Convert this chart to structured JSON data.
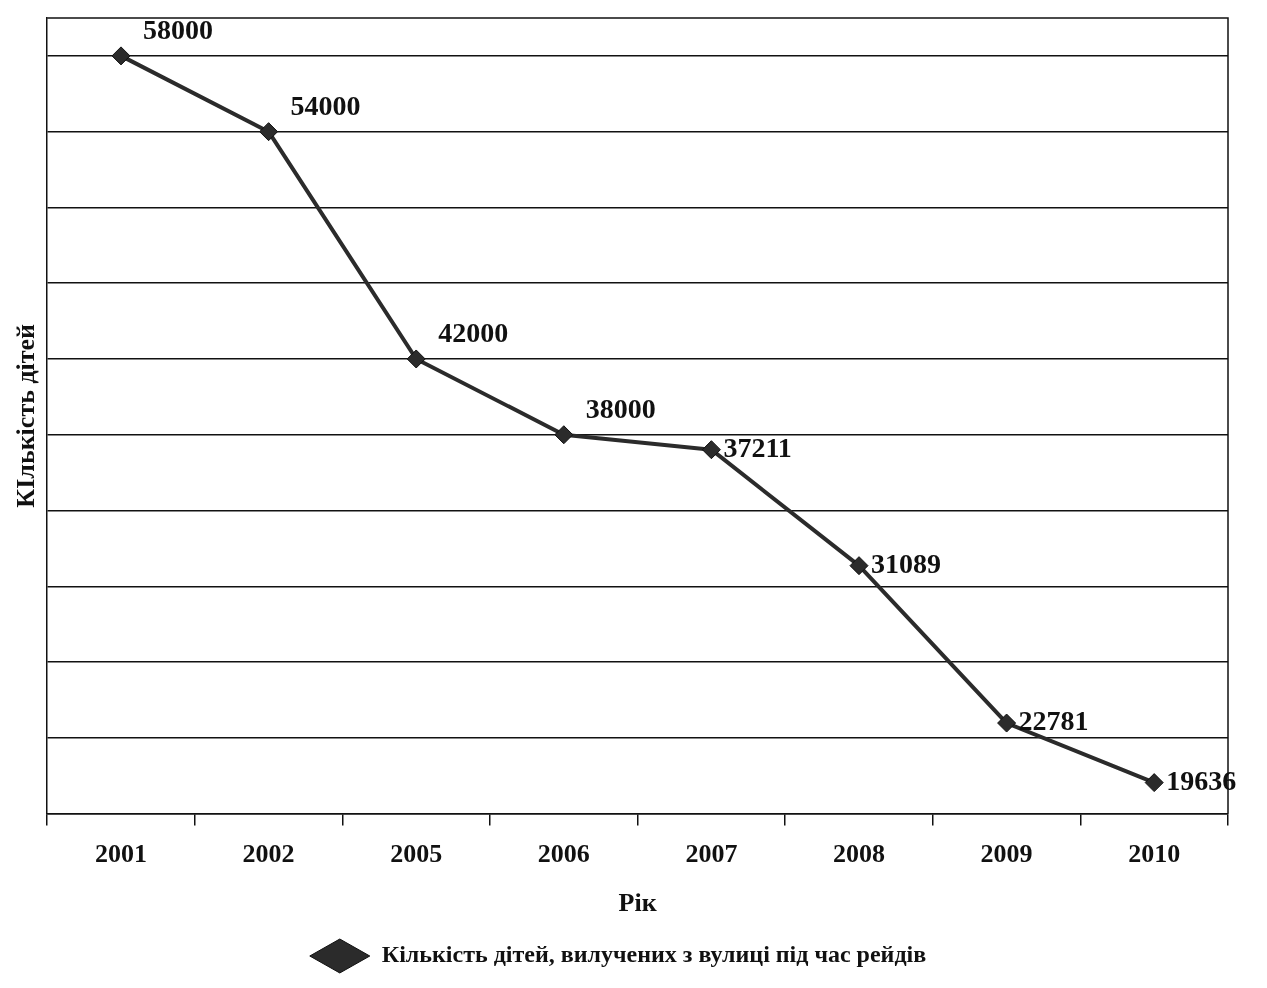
{
  "chart_data": {
    "type": "line",
    "xlabel": "Рік",
    "ylabel": "КІлькість дітей",
    "categories": [
      "2001",
      "2002",
      "2005",
      "2006",
      "2007",
      "2008",
      "2009",
      "2010"
    ],
    "series": [
      {
        "name": "Кількість дітей, вилучених з вулиці під час рейдів",
        "color": "#2b2b2b",
        "values": [
          58000,
          54000,
          42000,
          38000,
          37211,
          31089,
          22781,
          19636
        ]
      }
    ],
    "ylim": [
      18000,
      60000
    ],
    "yticks": [
      {
        "value": 18000,
        "label": null
      },
      {
        "value": 22000,
        "label": null
      },
      {
        "value": 26000,
        "label": null
      },
      {
        "value": 30000,
        "label": null
      },
      {
        "value": 34000,
        "label": null
      },
      {
        "value": 38000,
        "label": null
      },
      {
        "value": 42000,
        "label": null
      },
      {
        "value": 46000,
        "label": null
      },
      {
        "value": 50000,
        "label": null
      },
      {
        "value": 54000,
        "label": null
      },
      {
        "value": 58000,
        "label": null
      }
    ],
    "tick_labels": "x",
    "grid": "y",
    "legend": "bottom",
    "marker": "diamond",
    "line_style": "solid",
    "data_labels": true
  }
}
